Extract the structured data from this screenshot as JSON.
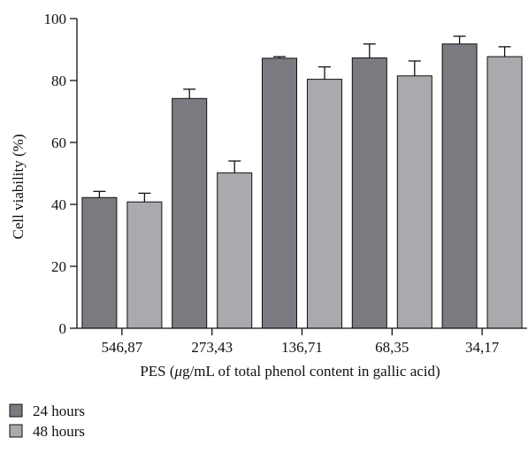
{
  "chart_data": {
    "type": "bar",
    "categories": [
      "546,87",
      "273,43",
      "136,71",
      "68,35",
      "34,17"
    ],
    "series": [
      {
        "name": "24 hours",
        "values": [
          42.2,
          74.2,
          87.2,
          87.3,
          91.8
        ],
        "errors": [
          2.0,
          3.0,
          0.5,
          4.5,
          2.5
        ],
        "color": "#7a7b80"
      },
      {
        "name": "48 hours",
        "values": [
          40.8,
          50.2,
          80.4,
          81.5,
          87.7
        ],
        "errors": [
          2.8,
          3.8,
          4.0,
          4.8,
          3.2
        ],
        "color": "#a9aaae"
      }
    ],
    "ylabel": "Cell viability (%)",
    "xlabel_prefix": "PES (",
    "xlabel_mu": "μ",
    "xlabel_suffix": "g/mL of total phenol content in gallic acid)",
    "ylim": [
      0,
      100
    ],
    "yticks": [
      0,
      20,
      40,
      60,
      80,
      100
    ],
    "grid": false,
    "legend_position": "bottom-left"
  }
}
